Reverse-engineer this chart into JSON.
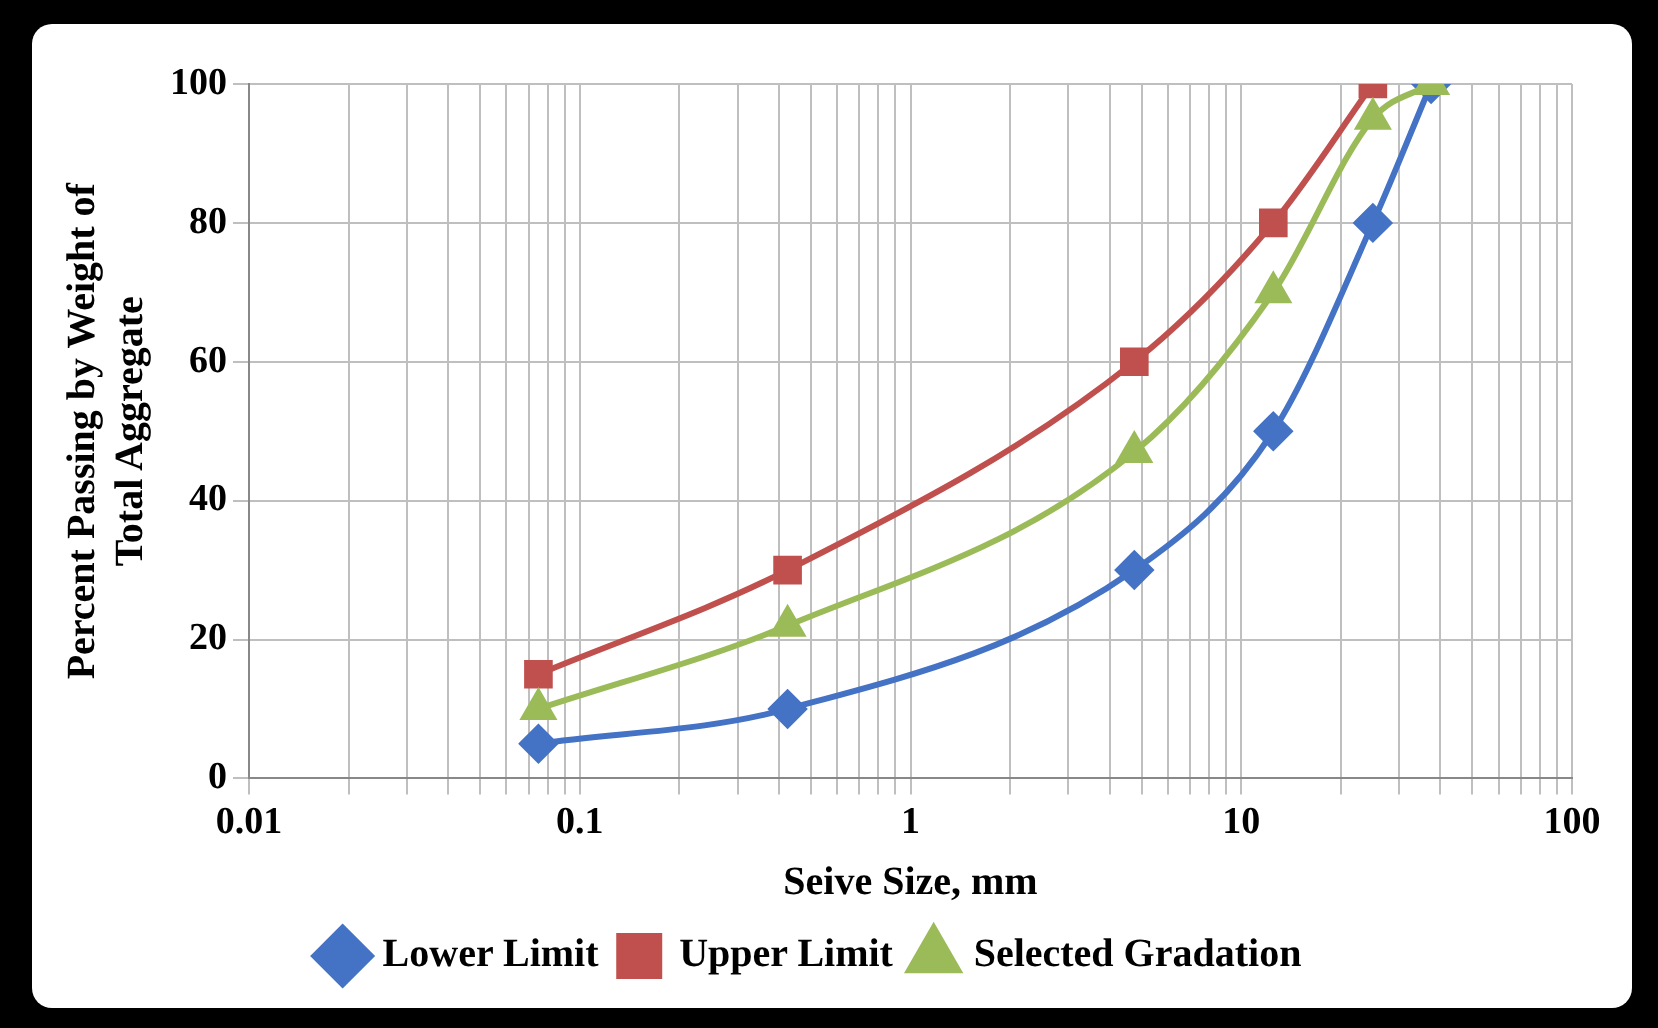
{
  "chart_data": {
    "type": "line",
    "xlabel": "Seive Size, mm",
    "ylabel": "Percent Passing by Weight of Total Aggregate",
    "log": "x",
    "grid": true,
    "legend": "bottom",
    "line_style": "solid",
    "x": [
      0.075,
      0.425,
      4.75,
      12.5,
      25,
      37.5
    ],
    "xlim": [
      0.01,
      100
    ],
    "xticks": [
      0.01,
      {
        "value": 0.02,
        "label": null
      },
      {
        "value": 0.03,
        "label": null
      },
      {
        "value": 0.04,
        "label": null
      },
      {
        "value": 0.05,
        "label": null
      },
      {
        "value": 0.06,
        "label": null
      },
      {
        "value": 0.07,
        "label": null
      },
      {
        "value": 0.08,
        "label": null
      },
      {
        "value": 0.09,
        "label": null
      },
      0.1,
      {
        "value": 0.2,
        "label": null
      },
      {
        "value": 0.3,
        "label": null
      },
      {
        "value": 0.4,
        "label": null
      },
      {
        "value": 0.5,
        "label": null
      },
      {
        "value": 0.6,
        "label": null
      },
      {
        "value": 0.7,
        "label": null
      },
      {
        "value": 0.8,
        "label": null
      },
      {
        "value": 0.9,
        "label": null
      },
      1,
      {
        "value": 2,
        "label": null
      },
      {
        "value": 3,
        "label": null
      },
      {
        "value": 4,
        "label": null
      },
      {
        "value": 5,
        "label": null
      },
      {
        "value": 6,
        "label": null
      },
      {
        "value": 7,
        "label": null
      },
      {
        "value": 8,
        "label": null
      },
      {
        "value": 9,
        "label": null
      },
      10,
      {
        "value": 20,
        "label": null
      },
      {
        "value": 30,
        "label": null
      },
      {
        "value": 40,
        "label": null
      },
      {
        "value": 50,
        "label": null
      },
      {
        "value": 60,
        "label": null
      },
      {
        "value": 70,
        "label": null
      },
      {
        "value": 80,
        "label": null
      },
      {
        "value": 90,
        "label": null
      },
      100
    ],
    "ylim": [
      0,
      100
    ],
    "yticks": [
      0,
      20,
      40,
      60,
      80,
      100
    ],
    "series": [
      {
        "name": "Lower Limit",
        "color": "#4472c4",
        "marker": "diamond",
        "values": [
          5,
          10,
          30,
          50,
          80,
          100
        ]
      },
      {
        "name": "Upper Limit",
        "color": "#c0504d",
        "marker": "square",
        "values": [
          15,
          30,
          60,
          80,
          100,
          null
        ]
      },
      {
        "name": "Selected Gradation",
        "color": "#9bbb59",
        "marker": "triangle",
        "values": [
          10,
          22,
          47,
          70,
          95,
          100
        ]
      }
    ]
  }
}
